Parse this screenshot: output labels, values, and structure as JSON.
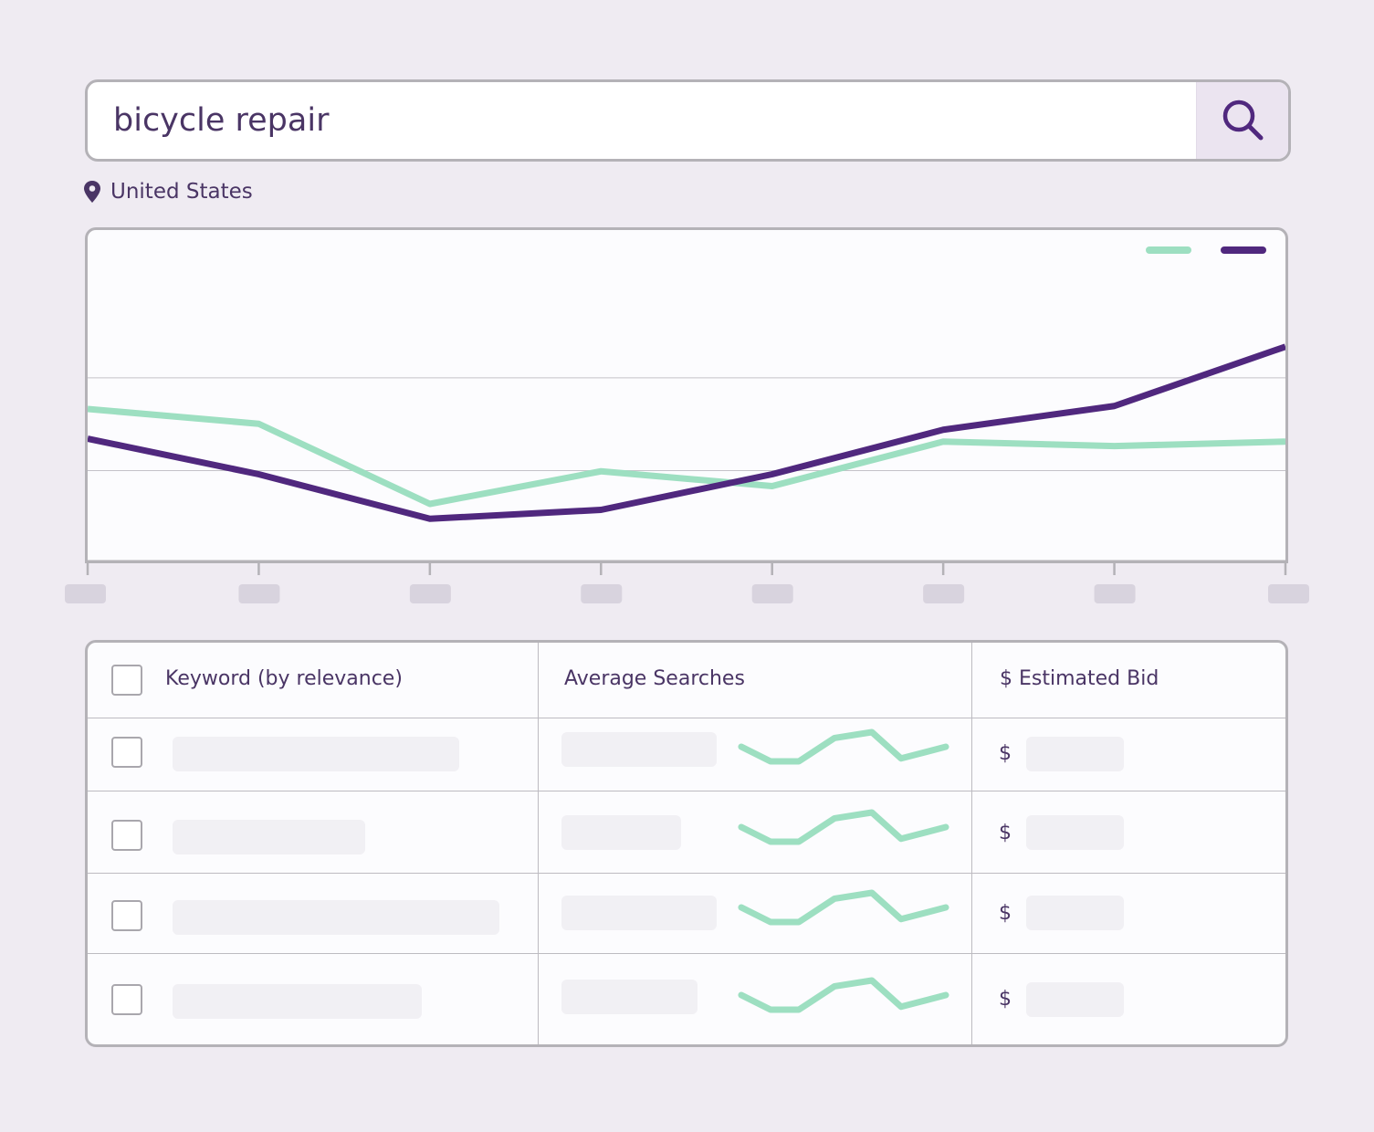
{
  "search": {
    "query": "bicycle repair",
    "icon": "search-icon"
  },
  "location": {
    "label": "United States",
    "icon": "map-pin-icon"
  },
  "colors": {
    "series_a": "#9ddfc1",
    "series_b": "#50287e",
    "text": "#4a3565",
    "placeholder": "#f1f0f4",
    "tick_label": "#d8d3de"
  },
  "chart_data": {
    "type": "line",
    "x": [
      1,
      2,
      3,
      4,
      5,
      6,
      7,
      8
    ],
    "series": [
      {
        "color": "#9ddfc1",
        "values": [
          52,
          47,
          20,
          31,
          26,
          41,
          39.5,
          41
        ]
      },
      {
        "color": "#50287e",
        "values": [
          42,
          30,
          15,
          18,
          30,
          45,
          53,
          73
        ]
      }
    ],
    "ylim": [
      0,
      100
    ],
    "grid": true,
    "legend": "top-right",
    "tick_labels": "placeholder"
  },
  "table": {
    "headers": {
      "keyword": "Keyword (by relevance)",
      "searches": "Average Searches",
      "bid": "$ Estimated Bid"
    },
    "rows": [
      {
        "currency": "$",
        "keyword_fill": 0.7,
        "searches_fill": 0.65,
        "bid_fill": 0.8
      },
      {
        "currency": "$",
        "keyword_fill": 0.47,
        "searches_fill": 0.5,
        "bid_fill": 0.8
      },
      {
        "currency": "$",
        "keyword_fill": 0.8,
        "searches_fill": 0.65,
        "bid_fill": 0.8
      },
      {
        "currency": "$",
        "keyword_fill": 0.61,
        "searches_fill": 0.57,
        "bid_fill": 0.8
      }
    ],
    "sparkline_values": [
      5,
      0,
      0,
      8,
      10,
      1,
      5
    ]
  }
}
